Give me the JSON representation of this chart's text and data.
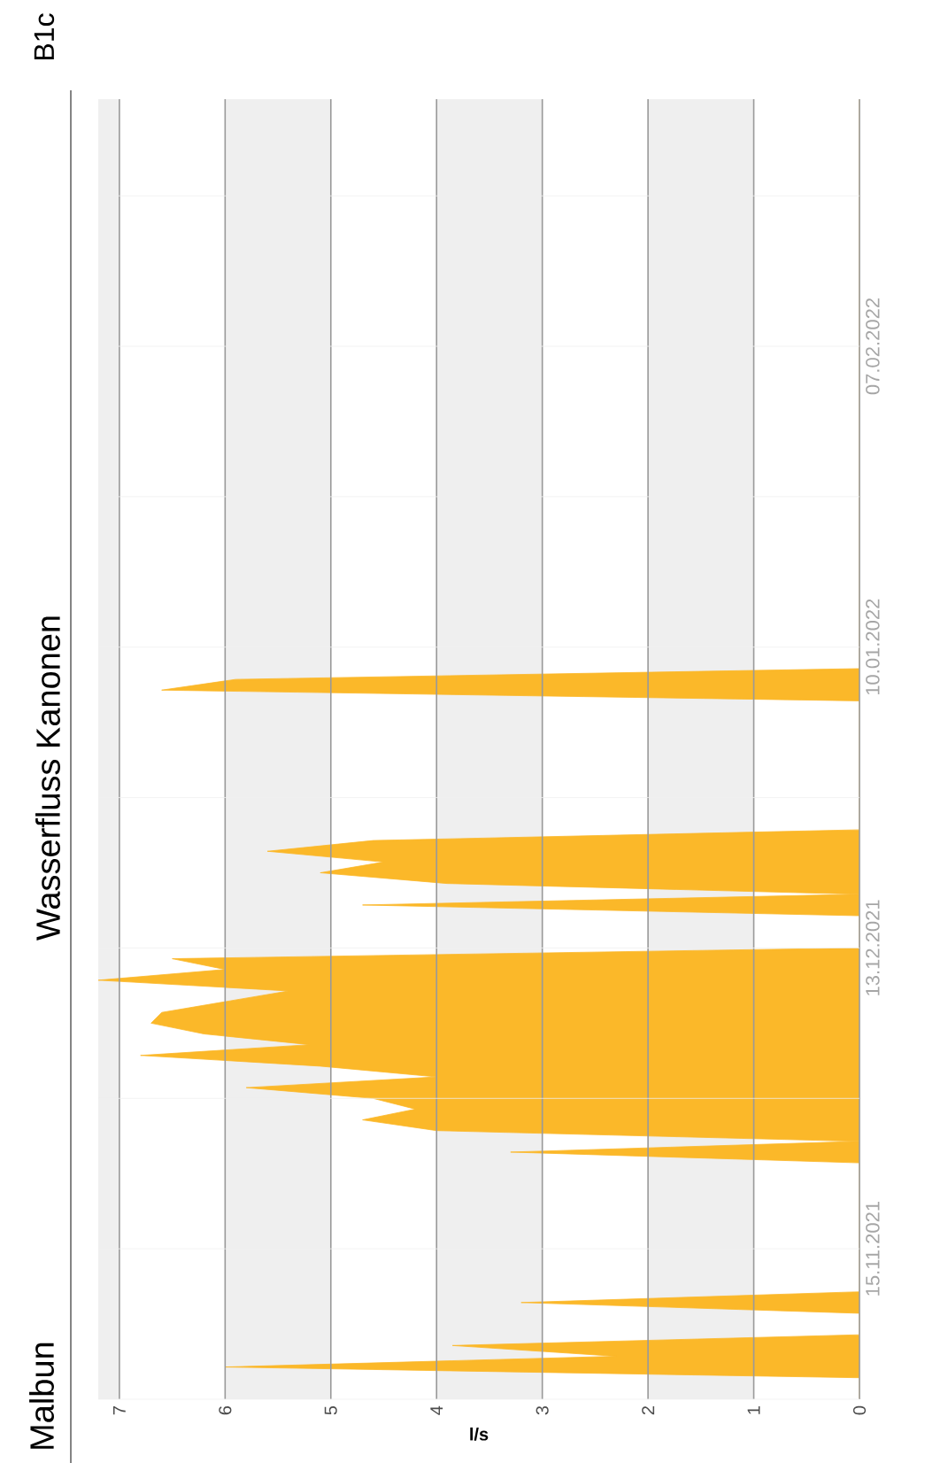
{
  "chart_data": {
    "type": "area",
    "orientation": "horizontal",
    "title": "Wasserfluss Kanonen",
    "subtitle": "Malbun",
    "annotations": [
      "B1c"
    ],
    "xlabel": "l/s",
    "color": "#fbb829",
    "x": [
      "2021-11-01",
      "2021-11-03",
      "2021-11-04",
      "2021-11-05",
      "2021-11-06",
      "2021-11-07",
      "2021-11-09",
      "2021-11-10",
      "2021-11-11",
      "2021-11-23",
      "2021-11-24",
      "2021-11-25",
      "2021-11-26",
      "2021-11-27",
      "2021-11-28",
      "2021-11-29",
      "2021-11-30",
      "2021-12-01",
      "2021-12-02",
      "2021-12-03",
      "2021-12-04",
      "2021-12-05",
      "2021-12-06",
      "2021-12-07",
      "2021-12-08",
      "2021-12-09",
      "2021-12-10",
      "2021-12-11",
      "2021-12-12",
      "2021-12-13",
      "2021-12-16",
      "2021-12-17",
      "2021-12-18",
      "2021-12-19",
      "2021-12-20",
      "2021-12-21",
      "2021-12-22",
      "2021-12-23",
      "2021-12-24",
      "2022-01-05",
      "2022-01-06",
      "2022-01-07",
      "2022-01-08",
      "2022-03-02"
    ],
    "values": [
      0,
      0,
      6.0,
      2.3,
      3.85,
      0,
      0,
      3.2,
      0,
      0,
      3.3,
      0,
      4.0,
      4.7,
      4.2,
      4.6,
      5.8,
      4.0,
      5.1,
      6.8,
      5.2,
      6.2,
      6.7,
      6.6,
      6.0,
      5.4,
      7.2,
      6.0,
      6.5,
      0,
      0,
      4.7,
      0,
      3.9,
      5.1,
      4.5,
      5.6,
      4.6,
      0,
      0,
      6.6,
      5.9,
      0,
      0
    ],
    "ylim": [
      "2021-11-01",
      "2022-03-02"
    ],
    "xlim": [
      7.2,
      0
    ],
    "yticks": [
      {
        "value": "2021-11-01",
        "label": null
      },
      {
        "value": "2021-11-15",
        "label": "15.11.2021"
      },
      {
        "value": "2021-11-29",
        "label": null
      },
      {
        "value": "2021-12-13",
        "label": "13.12.2021"
      },
      {
        "value": "2021-12-27",
        "label": null
      },
      {
        "value": "2022-01-10",
        "label": "10.01.2022"
      },
      {
        "value": "2022-01-24",
        "label": null
      },
      {
        "value": "2022-02-07",
        "label": "07.02.2022"
      },
      {
        "value": "2022-02-21",
        "label": null
      }
    ],
    "xticks": [
      0,
      1,
      2,
      3,
      4,
      5,
      6,
      7
    ],
    "grid": true,
    "bands": [
      {
        "axis": "x",
        "from": 1,
        "to": 2,
        "color": "#efefef"
      },
      {
        "axis": "x",
        "from": 3,
        "to": 4,
        "color": "#efefef"
      },
      {
        "axis": "x",
        "from": 5,
        "to": 6,
        "color": "#efefef"
      },
      {
        "axis": "x",
        "from": 7,
        "to": 7.2,
        "color": "#efefef"
      }
    ]
  }
}
